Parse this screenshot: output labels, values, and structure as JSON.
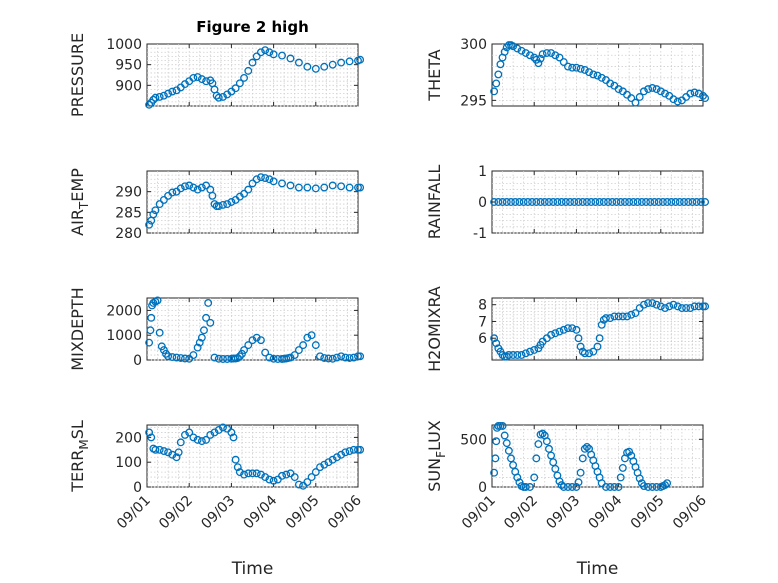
{
  "chart_data": [
    {
      "type": "scatter",
      "title": "Figure 2 high",
      "ylabel": "PRESSURE",
      "xlabel": "",
      "xlim": [
        0,
        5
      ],
      "ylim": [
        850,
        1000
      ],
      "x_ticks": [
        0,
        1,
        2,
        3,
        4,
        5
      ],
      "x_tick_labels": [],
      "y_ticks": [
        900,
        950,
        1000
      ],
      "y_tick_labels": [
        "900",
        "950",
        "1000"
      ],
      "grid": true,
      "marker_color": "#0072BD",
      "x": [
        0.05,
        0.1,
        0.15,
        0.2,
        0.3,
        0.4,
        0.5,
        0.6,
        0.7,
        0.8,
        0.9,
        1.0,
        1.1,
        1.2,
        1.3,
        1.4,
        1.5,
        1.55,
        1.6,
        1.65,
        1.7,
        1.8,
        1.9,
        2.0,
        2.1,
        2.2,
        2.3,
        2.4,
        2.5,
        2.6,
        2.7,
        2.8,
        2.9,
        3.0,
        3.2,
        3.4,
        3.6,
        3.8,
        4.0,
        4.2,
        4.4,
        4.6,
        4.8,
        5.0,
        5.05
      ],
      "y": [
        853,
        858,
        865,
        870,
        872,
        875,
        880,
        885,
        888,
        895,
        903,
        910,
        918,
        920,
        915,
        910,
        912,
        905,
        890,
        875,
        870,
        872,
        878,
        885,
        893,
        905,
        918,
        935,
        955,
        970,
        980,
        985,
        980,
        975,
        972,
        965,
        955,
        945,
        940,
        945,
        950,
        955,
        958,
        960,
        962
      ]
    },
    {
      "type": "scatter",
      "title": "",
      "ylabel": "THETA",
      "xlabel": "",
      "xlim": [
        0,
        5
      ],
      "ylim": [
        294.5,
        300
      ],
      "x_ticks": [
        0,
        1,
        2,
        3,
        4,
        5
      ],
      "x_tick_labels": [],
      "y_ticks": [
        295,
        300
      ],
      "y_tick_labels": [
        "295",
        "300"
      ],
      "grid": true,
      "marker_color": "#0072BD",
      "x": [
        0.05,
        0.1,
        0.15,
        0.2,
        0.25,
        0.3,
        0.35,
        0.4,
        0.45,
        0.5,
        0.6,
        0.7,
        0.8,
        0.9,
        1.0,
        1.05,
        1.1,
        1.15,
        1.2,
        1.3,
        1.4,
        1.5,
        1.6,
        1.7,
        1.8,
        1.9,
        2.0,
        2.1,
        2.2,
        2.3,
        2.4,
        2.5,
        2.6,
        2.7,
        2.8,
        2.9,
        3.0,
        3.1,
        3.2,
        3.3,
        3.4,
        3.5,
        3.6,
        3.7,
        3.8,
        3.9,
        4.0,
        4.1,
        4.2,
        4.3,
        4.4,
        4.5,
        4.6,
        4.7,
        4.8,
        4.9,
        5.0,
        5.05
      ],
      "y": [
        295.8,
        296.5,
        297.3,
        298.2,
        298.8,
        299.3,
        299.7,
        299.9,
        299.9,
        299.8,
        299.6,
        299.4,
        299.2,
        299.0,
        298.8,
        298.6,
        298.3,
        298.7,
        299.1,
        299.2,
        299.2,
        299.0,
        298.8,
        298.4,
        298.0,
        297.9,
        297.9,
        297.8,
        297.7,
        297.5,
        297.3,
        297.2,
        297.0,
        296.8,
        296.5,
        296.3,
        296.0,
        295.8,
        295.5,
        295.2,
        294.8,
        295.3,
        295.8,
        296.0,
        296.1,
        296.0,
        295.8,
        295.6,
        295.4,
        295.1,
        294.9,
        295.0,
        295.3,
        295.6,
        295.7,
        295.6,
        295.4,
        295.2
      ]
    },
    {
      "type": "scatter",
      "title": "",
      "ylabel": "AIR_TEMP",
      "xlabel": "",
      "xlim": [
        0,
        5
      ],
      "ylim": [
        280,
        295
      ],
      "x_ticks": [
        0,
        1,
        2,
        3,
        4,
        5
      ],
      "x_tick_labels": [],
      "y_ticks": [
        280,
        285,
        290
      ],
      "y_tick_labels": [
        "280",
        "285",
        "290"
      ],
      "grid": true,
      "marker_color": "#0072BD",
      "x": [
        0.05,
        0.1,
        0.15,
        0.2,
        0.3,
        0.4,
        0.5,
        0.6,
        0.7,
        0.8,
        0.9,
        1.0,
        1.1,
        1.2,
        1.3,
        1.4,
        1.5,
        1.55,
        1.6,
        1.65,
        1.7,
        1.8,
        1.9,
        2.0,
        2.1,
        2.2,
        2.3,
        2.4,
        2.5,
        2.6,
        2.7,
        2.8,
        2.9,
        3.0,
        3.2,
        3.4,
        3.6,
        3.8,
        4.0,
        4.2,
        4.4,
        4.6,
        4.8,
        5.0,
        5.05
      ],
      "y": [
        282.0,
        283.0,
        284.5,
        285.5,
        287.0,
        288.0,
        289.0,
        289.8,
        290.0,
        290.8,
        291.3,
        291.5,
        291.0,
        290.5,
        291.0,
        291.5,
        290.5,
        289.0,
        287.0,
        286.5,
        286.5,
        286.8,
        287.0,
        287.5,
        288.0,
        288.8,
        289.5,
        290.5,
        292.0,
        293.0,
        293.5,
        293.3,
        293.0,
        292.5,
        292.0,
        291.5,
        291.0,
        291.0,
        290.8,
        291.0,
        291.5,
        291.3,
        291.0,
        291.0,
        291.0
      ]
    },
    {
      "type": "scatter",
      "title": "",
      "ylabel": "RAINFALL",
      "xlabel": "",
      "xlim": [
        0,
        5
      ],
      "ylim": [
        -1,
        1
      ],
      "x_ticks": [
        0,
        1,
        2,
        3,
        4,
        5
      ],
      "x_tick_labels": [],
      "y_ticks": [
        -1,
        0,
        1
      ],
      "y_tick_labels": [
        "-1",
        "0",
        "1"
      ],
      "grid": true,
      "marker_color": "#0072BD",
      "x": [
        0.05,
        0.15,
        0.25,
        0.35,
        0.45,
        0.55,
        0.65,
        0.75,
        0.85,
        0.95,
        1.05,
        1.15,
        1.25,
        1.35,
        1.45,
        1.55,
        1.65,
        1.75,
        1.85,
        1.95,
        2.05,
        2.15,
        2.25,
        2.35,
        2.45,
        2.55,
        2.65,
        2.75,
        2.85,
        2.95,
        3.05,
        3.15,
        3.25,
        3.35,
        3.45,
        3.55,
        3.65,
        3.75,
        3.85,
        3.95,
        4.05,
        4.15,
        4.25,
        4.35,
        4.45,
        4.55,
        4.65,
        4.75,
        4.85,
        4.95,
        5.05
      ],
      "y": [
        0,
        0,
        0,
        0,
        0,
        0,
        0,
        0,
        0,
        0,
        0,
        0,
        0,
        0,
        0,
        0,
        0,
        0,
        0,
        0,
        0,
        0,
        0,
        0,
        0,
        0,
        0,
        0,
        0,
        0,
        0,
        0,
        0,
        0,
        0,
        0,
        0,
        0,
        0,
        0,
        0,
        0,
        0,
        0,
        0,
        0,
        0,
        0,
        0,
        0,
        0
      ]
    },
    {
      "type": "scatter",
      "title": "",
      "ylabel": "MIXDEPTH",
      "xlabel": "",
      "xlim": [
        0,
        5
      ],
      "ylim": [
        0,
        2500
      ],
      "x_ticks": [
        0,
        1,
        2,
        3,
        4,
        5
      ],
      "x_tick_labels": [],
      "y_ticks": [
        0,
        1000,
        2000
      ],
      "y_tick_labels": [
        "0",
        "1000",
        "2000"
      ],
      "grid": true,
      "marker_color": "#0072BD",
      "x": [
        0.05,
        0.08,
        0.1,
        0.12,
        0.15,
        0.2,
        0.25,
        0.3,
        0.35,
        0.4,
        0.45,
        0.5,
        0.6,
        0.7,
        0.8,
        0.9,
        1.0,
        1.1,
        1.2,
        1.25,
        1.3,
        1.35,
        1.4,
        1.45,
        1.5,
        1.6,
        1.7,
        1.8,
        1.9,
        2.0,
        2.05,
        2.1,
        2.15,
        2.2,
        2.25,
        2.3,
        2.4,
        2.5,
        2.6,
        2.7,
        2.8,
        2.9,
        3.0,
        3.1,
        3.2,
        3.25,
        3.3,
        3.35,
        3.4,
        3.5,
        3.6,
        3.7,
        3.8,
        3.9,
        4.0,
        4.1,
        4.2,
        4.3,
        4.4,
        4.5,
        4.6,
        4.7,
        4.8,
        4.9,
        5.0,
        5.05
      ],
      "y": [
        700,
        1200,
        1700,
        2200,
        2300,
        2350,
        2400,
        1100,
        550,
        400,
        250,
        150,
        120,
        100,
        80,
        60,
        50,
        200,
        500,
        700,
        900,
        1200,
        1700,
        2300,
        1500,
        100,
        50,
        40,
        40,
        50,
        60,
        60,
        80,
        150,
        250,
        400,
        600,
        800,
        900,
        800,
        300,
        100,
        50,
        40,
        40,
        50,
        60,
        80,
        100,
        200,
        400,
        600,
        900,
        1000,
        600,
        150,
        80,
        60,
        50,
        100,
        150,
        100,
        80,
        100,
        150,
        150
      ]
    },
    {
      "type": "scatter",
      "title": "",
      "ylabel": "H2OMIXRA",
      "xlabel": "",
      "xlim": [
        0,
        5
      ],
      "ylim": [
        4.7,
        8.4
      ],
      "x_ticks": [
        0,
        1,
        2,
        3,
        4,
        5
      ],
      "x_tick_labels": [],
      "y_ticks": [
        6,
        7,
        8
      ],
      "y_tick_labels": [
        "6",
        "7",
        "8"
      ],
      "grid": true,
      "marker_color": "#0072BD",
      "x": [
        0.05,
        0.1,
        0.15,
        0.2,
        0.25,
        0.3,
        0.35,
        0.4,
        0.5,
        0.6,
        0.7,
        0.8,
        0.9,
        1.0,
        1.1,
        1.15,
        1.2,
        1.3,
        1.4,
        1.5,
        1.6,
        1.7,
        1.8,
        1.9,
        2.0,
        2.05,
        2.1,
        2.15,
        2.2,
        2.3,
        2.4,
        2.5,
        2.55,
        2.6,
        2.65,
        2.7,
        2.8,
        2.9,
        3.0,
        3.1,
        3.2,
        3.3,
        3.4,
        3.5,
        3.6,
        3.7,
        3.8,
        3.9,
        4.0,
        4.1,
        4.2,
        4.3,
        4.4,
        4.5,
        4.6,
        4.7,
        4.8,
        4.9,
        5.0,
        5.05
      ],
      "y": [
        6.0,
        5.7,
        5.4,
        5.2,
        5.0,
        4.9,
        4.9,
        5.0,
        5.0,
        5.0,
        5.0,
        5.1,
        5.2,
        5.3,
        5.4,
        5.6,
        5.8,
        6.0,
        6.2,
        6.3,
        6.4,
        6.5,
        6.6,
        6.6,
        6.5,
        6.0,
        5.5,
        5.2,
        5.1,
        5.1,
        5.2,
        5.5,
        6.0,
        6.8,
        7.1,
        7.2,
        7.2,
        7.3,
        7.3,
        7.3,
        7.3,
        7.4,
        7.5,
        7.8,
        8.0,
        8.1,
        8.1,
        8.0,
        7.9,
        7.8,
        7.9,
        8.0,
        7.9,
        7.8,
        7.8,
        7.8,
        7.9,
        7.9,
        7.9,
        7.9
      ]
    },
    {
      "type": "scatter",
      "title": "",
      "ylabel": "TERR_MSL",
      "xlabel": "Time",
      "xlim": [
        0,
        5
      ],
      "ylim": [
        0,
        250
      ],
      "x_ticks": [
        0,
        1,
        2,
        3,
        4,
        5
      ],
      "x_tick_labels": [
        "09/01",
        "09/02",
        "09/03",
        "09/04",
        "09/05",
        "09/06"
      ],
      "y_ticks": [
        0,
        100,
        200
      ],
      "y_tick_labels": [
        "0",
        "100",
        "200"
      ],
      "grid": true,
      "marker_color": "#0072BD",
      "x": [
        0.05,
        0.1,
        0.15,
        0.2,
        0.3,
        0.4,
        0.5,
        0.6,
        0.7,
        0.75,
        0.8,
        0.9,
        1.0,
        1.1,
        1.2,
        1.3,
        1.4,
        1.5,
        1.6,
        1.7,
        1.8,
        1.9,
        2.0,
        2.05,
        2.1,
        2.15,
        2.2,
        2.3,
        2.4,
        2.5,
        2.6,
        2.7,
        2.8,
        2.9,
        3.0,
        3.1,
        3.2,
        3.3,
        3.4,
        3.5,
        3.6,
        3.7,
        3.8,
        3.9,
        4.0,
        4.1,
        4.2,
        4.3,
        4.4,
        4.5,
        4.6,
        4.7,
        4.8,
        4.9,
        5.0,
        5.05
      ],
      "y": [
        220,
        200,
        155,
        150,
        150,
        145,
        140,
        130,
        120,
        140,
        180,
        210,
        220,
        200,
        190,
        185,
        190,
        210,
        220,
        230,
        240,
        235,
        220,
        200,
        110,
        80,
        60,
        50,
        55,
        55,
        55,
        50,
        40,
        30,
        25,
        30,
        45,
        50,
        55,
        40,
        10,
        5,
        20,
        40,
        60,
        80,
        90,
        100,
        110,
        120,
        130,
        140,
        145,
        150,
        150,
        150
      ]
    },
    {
      "type": "scatter",
      "title": "",
      "ylabel": "SUN_FLUX",
      "xlabel": "Time",
      "xlim": [
        0,
        5
      ],
      "ylim": [
        0,
        650
      ],
      "x_ticks": [
        0,
        1,
        2,
        3,
        4,
        5
      ],
      "x_tick_labels": [
        "09/01",
        "09/02",
        "09/03",
        "09/04",
        "09/05",
        "09/06"
      ],
      "y_ticks": [
        0,
        500
      ],
      "y_tick_labels": [
        "0",
        "500"
      ],
      "grid": true,
      "marker_color": "#0072BD",
      "x": [
        0.05,
        0.08,
        0.1,
        0.12,
        0.15,
        0.2,
        0.25,
        0.3,
        0.35,
        0.4,
        0.45,
        0.5,
        0.55,
        0.6,
        0.65,
        0.7,
        0.75,
        0.8,
        0.9,
        1.0,
        1.05,
        1.1,
        1.15,
        1.2,
        1.25,
        1.3,
        1.35,
        1.4,
        1.45,
        1.5,
        1.55,
        1.6,
        1.65,
        1.7,
        1.8,
        1.9,
        2.0,
        2.05,
        2.1,
        2.15,
        2.2,
        2.25,
        2.3,
        2.35,
        2.4,
        2.45,
        2.5,
        2.55,
        2.6,
        2.7,
        2.8,
        2.9,
        3.0,
        3.05,
        3.1,
        3.15,
        3.2,
        3.25,
        3.3,
        3.35,
        3.4,
        3.45,
        3.5,
        3.55,
        3.6,
        3.7,
        3.8,
        3.9,
        4.0,
        4.05,
        4.1,
        4.15
      ],
      "y": [
        150,
        300,
        480,
        620,
        640,
        640,
        640,
        540,
        460,
        380,
        300,
        230,
        160,
        100,
        50,
        10,
        0,
        0,
        0,
        100,
        300,
        450,
        550,
        560,
        540,
        480,
        400,
        330,
        260,
        190,
        120,
        60,
        20,
        0,
        0,
        0,
        0,
        50,
        150,
        300,
        400,
        420,
        400,
        340,
        280,
        220,
        160,
        100,
        40,
        0,
        0,
        0,
        0,
        100,
        200,
        300,
        360,
        370,
        330,
        270,
        210,
        150,
        90,
        40,
        10,
        0,
        0,
        0,
        0,
        10,
        20,
        40
      ]
    }
  ]
}
